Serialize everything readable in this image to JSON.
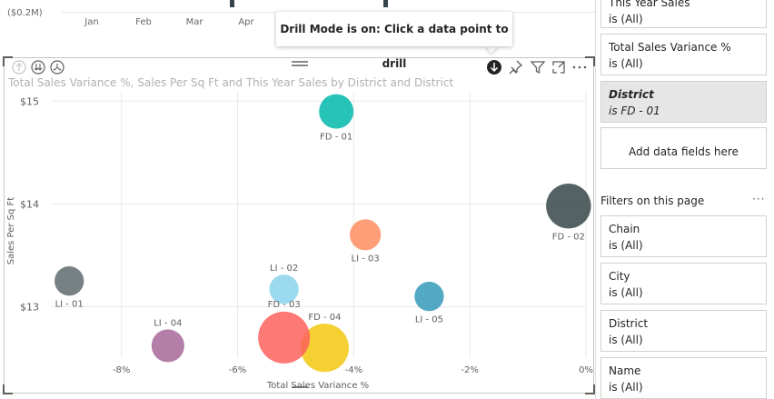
{
  "top_chart": {
    "y_tick": "($0.2M)",
    "months": [
      "Jan",
      "Feb",
      "Mar",
      "Apr"
    ]
  },
  "tooltip": {
    "text": "Drill Mode is on: Click a data point to drill"
  },
  "visual": {
    "title": "Total Sales Variance %, Sales Per Sq Ft and This Year Sales by District and District"
  },
  "icons": {
    "drill_up": "arrow-up-circle-icon",
    "drill_down_level": "double-arrow-down-circle-icon",
    "expand_hierarchy": "fork-arrow-circle-icon",
    "drill_mode": "arrow-down-filled-circle-icon",
    "pin": "pin-icon",
    "filter": "filter-icon",
    "focus": "focus-mode-icon",
    "more": "more-options-icon"
  },
  "chart_data": {
    "type": "scatter",
    "title": "Total Sales Variance %, Sales Per Sq Ft and This Year Sales by District and District",
    "xlabel": "Total Sales Variance %",
    "ylabel": "Sales Per Sq Ft",
    "x_ticks": [
      "-8%",
      "-6%",
      "-4%",
      "-2%",
      "0%"
    ],
    "y_ticks": [
      "$13",
      "$14",
      "$15"
    ],
    "xlim": [
      -0.092,
      0
    ],
    "ylim": [
      12.5,
      15.1
    ],
    "grid": true,
    "points": [
      {
        "label": "FD - 01",
        "x": -0.043,
        "y": 14.9,
        "size": 1.0,
        "color": "#01b8aa"
      },
      {
        "label": "FD - 02",
        "x": -0.003,
        "y": 13.98,
        "size": 1.3,
        "color": "#374649"
      },
      {
        "label": "LI - 03",
        "x": -0.038,
        "y": 13.7,
        "size": 0.9,
        "color": "#fd8d62"
      },
      {
        "label": "LI - 01",
        "x": -0.089,
        "y": 13.25,
        "size": 0.85,
        "color": "#5f6b6d"
      },
      {
        "label": "LI - 02",
        "x": -0.052,
        "y": 13.17,
        "size": 0.85,
        "color": "#8ad4eb"
      },
      {
        "label": "FD - 03",
        "x": -0.052,
        "y": 13.17,
        "size": 0.0,
        "color": "#8ad4eb"
      },
      {
        "label": "LI - 05",
        "x": -0.027,
        "y": 13.1,
        "size": 0.85,
        "color": "#3599b8"
      },
      {
        "label": "LI - 04",
        "x": -0.072,
        "y": 12.62,
        "size": 0.95,
        "color": "#a66999"
      },
      {
        "label": "FD - 04",
        "x": -0.045,
        "y": 12.6,
        "size": 1.4,
        "color": "#f2c80f"
      },
      {
        "label": "",
        "x": -0.052,
        "y": 12.7,
        "size": 1.5,
        "color": "#fd625e"
      }
    ]
  },
  "filters_pane": {
    "visual_filters": [
      {
        "title": "This Year Sales",
        "value": "is (All)"
      },
      {
        "title": "Total Sales Variance %",
        "value": "is (All)"
      },
      {
        "title": "District",
        "value": "is FD - 01"
      }
    ],
    "add_fields": "Add data fields here",
    "page_label": "Filters on this page",
    "more": "···",
    "page_filters": [
      {
        "title": "Chain",
        "value": "is (All)"
      },
      {
        "title": "City",
        "value": "is (All)"
      },
      {
        "title": "District",
        "value": "is (All)"
      },
      {
        "title": "Name",
        "value": "is (All)"
      }
    ]
  }
}
